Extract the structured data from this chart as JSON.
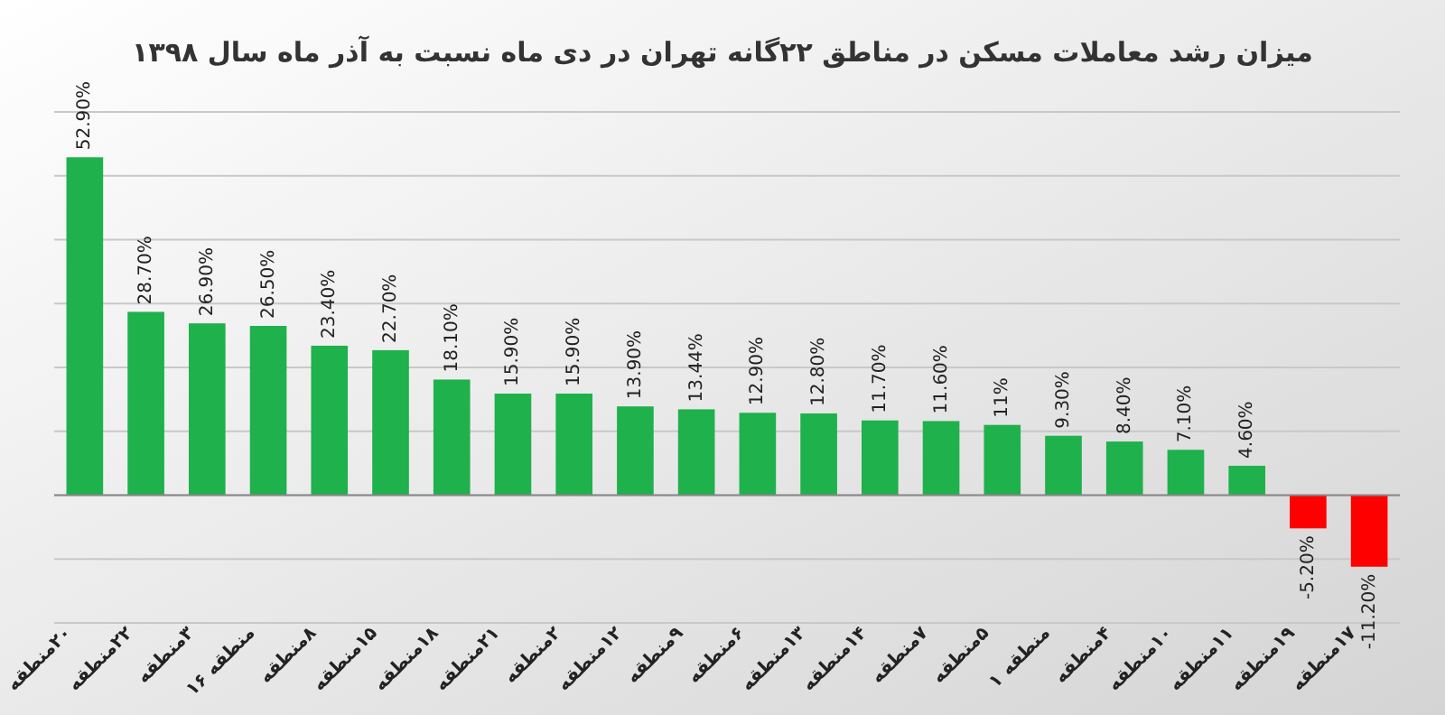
{
  "chart_data": {
    "type": "bar",
    "title": "میزان رشد معاملات مسکن در مناطق ۲۲گانه تهران در دی ماه نسبت به آذر ماه سال ۱۳۹۸",
    "categories": [
      "۲۰منطقه",
      "۲۲منطقه",
      "۳منطقه",
      "منطقه ۱۶",
      "۸منطقه",
      "۱۵منطقه",
      "۱۸منطقه",
      "۲۱منطقه",
      "۲منطقه",
      "۱۲منطقه",
      "۹منطقه",
      "۶منطقه",
      "۱۳منطقه",
      "۱۴منطقه",
      "۷منطقه",
      "۵منطقه",
      "منطقه ۱",
      "۴منطقه",
      "۱۰منطقه",
      "۱۱منطقه",
      "۱۹منطقه",
      "۱۷منطقه"
    ],
    "values": [
      52.9,
      28.7,
      26.9,
      26.5,
      23.4,
      22.7,
      18.1,
      15.9,
      15.9,
      13.9,
      13.44,
      12.9,
      12.8,
      11.7,
      11.6,
      11,
      9.3,
      8.4,
      7.1,
      4.6,
      -5.2,
      -11.2
    ],
    "value_labels": [
      "52.90%",
      "28.70%",
      "26.90%",
      "26.50%",
      "23.40%",
      "22.70%",
      "18.10%",
      "15.90%",
      "15.90%",
      "13.90%",
      "13.44%",
      "12.90%",
      "12.80%",
      "11.70%",
      "11.60%",
      "11%",
      "9.30%",
      "8.40%",
      "7.10%",
      "4.60%",
      "-5.20%",
      "-11.20%"
    ],
    "colors": [
      "#1fb14c",
      "#1fb14c",
      "#1fb14c",
      "#1fb14c",
      "#1fb14c",
      "#1fb14c",
      "#1fb14c",
      "#1fb14c",
      "#1fb14c",
      "#1fb14c",
      "#1fb14c",
      "#1fb14c",
      "#1fb14c",
      "#1fb14c",
      "#1fb14c",
      "#1fb14c",
      "#1fb14c",
      "#1fb14c",
      "#1fb14c",
      "#1fb14c",
      "#ff0000",
      "#ff0000"
    ],
    "ylim": [
      -20,
      60
    ],
    "yticks": [
      {
        "value": -20,
        "label": null
      },
      {
        "value": -10,
        "label": null
      },
      {
        "value": 0,
        "label": null
      },
      {
        "value": 10,
        "label": null
      },
      {
        "value": 20,
        "label": null
      },
      {
        "value": 30,
        "label": null
      },
      {
        "value": 40,
        "label": null
      },
      {
        "value": 50,
        "label": null
      },
      {
        "value": 60,
        "label": null
      }
    ],
    "grid": "y"
  }
}
